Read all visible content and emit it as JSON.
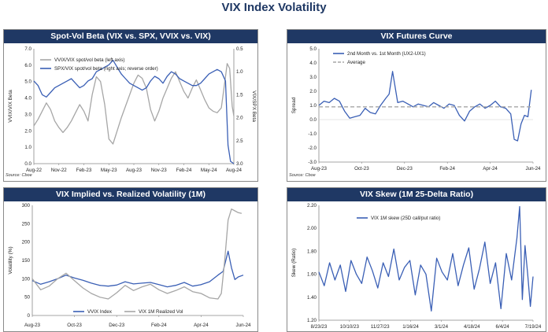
{
  "page_title": "VIX Index Volatility",
  "colors": {
    "header": "#1f3864",
    "blue": "#3a5fb5",
    "gray": "#a6a6a6",
    "avg": "#a6a6a6"
  },
  "chart_data": [
    {
      "type": "line",
      "title": "Spot-Vol Beta (VIX vs. SPX, VVIX vs. VIX)",
      "source": "Source: Cboe",
      "x_tick_labels": [
        "Aug-22",
        "Nov-22",
        "Feb-23",
        "May-23",
        "Aug-23",
        "Nov-23",
        "Feb-24",
        "May-24",
        "Aug-24"
      ],
      "x_range": [
        0,
        24
      ],
      "ylabel_left": "VVIX/VIX Beta",
      "ylabel_right": "VIX/SPX Beta",
      "ylim_left": [
        0.0,
        7.0
      ],
      "ylim_right": [
        3.0,
        0.5
      ],
      "yticks_left": [
        "0.0",
        "1.0",
        "2.0",
        "3.0",
        "4.0",
        "5.0",
        "6.0",
        "7.0"
      ],
      "yticks_right": [
        "0.5",
        "1.0",
        "1.5",
        "2.0",
        "2.5",
        "3.0"
      ],
      "series": [
        {
          "name": "VVIX/VIX spot/vol beta (left axis)",
          "color": "#a6a6a6",
          "axis": "left",
          "x": [
            0,
            0.5,
            1,
            1.5,
            2,
            2.5,
            3,
            3.5,
            4,
            4.5,
            5,
            5.5,
            6,
            6.5,
            7,
            7.5,
            8,
            8.5,
            9,
            9.5,
            10,
            10.5,
            11,
            11.5,
            12,
            12.5,
            13,
            13.5,
            14,
            14.5,
            15,
            15.5,
            16,
            16.5,
            17,
            17.5,
            18,
            18.5,
            19,
            19.5,
            20,
            20.5,
            21,
            21.5,
            22,
            22.5,
            23,
            23.2,
            23.5,
            23.8,
            24
          ],
          "values": [
            2.3,
            2.7,
            3.2,
            3.7,
            3.3,
            2.6,
            2.2,
            1.9,
            2.2,
            2.6,
            3.1,
            3.6,
            3.2,
            2.6,
            4.2,
            5.3,
            5.0,
            3.6,
            1.5,
            1.2,
            2.0,
            2.8,
            3.5,
            4.2,
            4.9,
            5.4,
            5.2,
            4.6,
            3.3,
            2.6,
            3.2,
            4.0,
            4.6,
            5.2,
            5.6,
            5.0,
            4.4,
            4.0,
            4.6,
            5.1,
            4.5,
            3.9,
            3.4,
            3.2,
            3.1,
            3.4,
            5.3,
            6.1,
            5.8,
            3.5,
            2.9
          ]
        },
        {
          "name": "SPX/VIX spot/vol beta (right axis; reverse order)",
          "color": "#3a5fb5",
          "axis": "right",
          "x": [
            0,
            0.5,
            1,
            1.5,
            2,
            2.5,
            3,
            3.5,
            4,
            4.5,
            5,
            5.5,
            6,
            6.5,
            7,
            7.5,
            8,
            8.5,
            9,
            9.5,
            10,
            10.5,
            11,
            11.5,
            12,
            12.5,
            13,
            13.5,
            14,
            14.5,
            15,
            15.5,
            16,
            16.5,
            17,
            17.5,
            18,
            18.5,
            19,
            19.5,
            20,
            20.5,
            21,
            21.5,
            22,
            22.5,
            23,
            23.3,
            23.6,
            24
          ],
          "values": [
            1.2,
            1.3,
            1.5,
            1.55,
            1.45,
            1.35,
            1.3,
            1.25,
            1.2,
            1.15,
            1.25,
            1.35,
            1.3,
            1.2,
            1.15,
            1.0,
            0.95,
            0.9,
            0.85,
            0.75,
            0.9,
            1.05,
            1.15,
            1.25,
            1.3,
            1.35,
            1.4,
            1.35,
            1.2,
            1.1,
            1.15,
            1.25,
            1.1,
            1.0,
            1.05,
            1.15,
            1.2,
            1.25,
            1.3,
            1.3,
            1.25,
            1.15,
            1.05,
            1.0,
            0.95,
            1.0,
            1.2,
            2.6,
            2.95,
            3.0
          ]
        }
      ]
    },
    {
      "type": "line",
      "title": "VIX Futures Curve",
      "source": "Source: Cboe",
      "x_tick_labels": [
        "Aug-23",
        "Oct-23",
        "Dec-23",
        "Feb-24",
        "Apr-24",
        "Jun-24"
      ],
      "x_range": [
        0,
        12.5
      ],
      "ylabel": "Spread",
      "ylim": [
        -3.0,
        5.0
      ],
      "yticks": [
        "-3.0",
        "-2.0",
        "-1.0",
        "0.0",
        "1.0",
        "2.0",
        "3.0",
        "4.0",
        "5.0"
      ],
      "series": [
        {
          "name": "2nd Month vs. 1st Month (UX2-UX1)",
          "color": "#3a5fb5",
          "x": [
            0,
            0.3,
            0.6,
            0.9,
            1.2,
            1.5,
            1.8,
            2.1,
            2.4,
            2.7,
            3.0,
            3.3,
            3.6,
            3.9,
            4.1,
            4.3,
            4.6,
            4.9,
            5.2,
            5.5,
            5.8,
            6.1,
            6.4,
            6.7,
            7.0,
            7.3,
            7.6,
            7.9,
            8.2,
            8.5,
            8.8,
            9.1,
            9.4,
            9.7,
            10.0,
            10.3,
            10.6,
            10.9,
            11.2,
            11.4,
            11.6,
            11.8,
            12.0,
            12.2,
            12.4
          ],
          "values": [
            1.0,
            1.3,
            1.2,
            1.5,
            1.3,
            0.6,
            0.1,
            0.2,
            0.3,
            0.8,
            0.5,
            0.4,
            1.0,
            1.5,
            1.8,
            3.4,
            1.2,
            1.3,
            1.1,
            0.9,
            1.1,
            1.0,
            0.9,
            1.2,
            1.0,
            0.8,
            1.1,
            1.0,
            0.3,
            -0.1,
            0.6,
            0.9,
            1.1,
            0.8,
            1.0,
            1.3,
            0.9,
            0.8,
            0.4,
            -1.4,
            -1.5,
            -0.3,
            0.3,
            0.2,
            2.1
          ]
        },
        {
          "name": "Average",
          "color": "#a6a6a6",
          "dashed": true,
          "x": [
            0,
            12.5
          ],
          "values": [
            0.9,
            0.9
          ]
        }
      ]
    },
    {
      "type": "line",
      "title": "VIX Implied vs. Realized Volatility (1M)",
      "source": "Source: Cboe",
      "x_tick_labels": [
        "Aug-23",
        "Oct-23",
        "Dec-23",
        "Feb-24",
        "Apr-24",
        "Jun-24"
      ],
      "x_range": [
        0,
        12.5
      ],
      "ylabel": "Volatility (%)",
      "ylim": [
        0,
        300
      ],
      "yticks": [
        "0",
        "50",
        "100",
        "150",
        "200",
        "250",
        "300"
      ],
      "series": [
        {
          "name": "VVIX Index",
          "color": "#3a5fb5",
          "x": [
            0,
            0.5,
            1,
            1.5,
            2,
            2.5,
            3,
            3.5,
            4,
            4.5,
            5,
            5.5,
            6,
            6.5,
            7,
            7.5,
            8,
            8.5,
            9,
            9.5,
            10,
            10.5,
            11,
            11.3,
            11.6,
            11.8,
            12.0,
            12.2,
            12.5
          ],
          "values": [
            95,
            85,
            92,
            100,
            110,
            102,
            96,
            88,
            82,
            80,
            83,
            92,
            86,
            88,
            90,
            84,
            78,
            82,
            90,
            80,
            84,
            92,
            110,
            120,
            175,
            130,
            98,
            105,
            110
          ]
        },
        {
          "name": "VIX 1M Realized Vol",
          "color": "#a6a6a6",
          "x": [
            0,
            0.5,
            1,
            1.5,
            2,
            2.5,
            3,
            3.5,
            4,
            4.5,
            5,
            5.5,
            6,
            6.5,
            7,
            7.5,
            8,
            8.5,
            9,
            9.5,
            10,
            10.5,
            11,
            11.2,
            11.4,
            11.6,
            11.8,
            12.0,
            12.2,
            12.4
          ],
          "values": [
            100,
            70,
            80,
            100,
            115,
            95,
            75,
            60,
            50,
            45,
            62,
            82,
            68,
            78,
            85,
            70,
            60,
            68,
            78,
            65,
            60,
            48,
            45,
            60,
            150,
            260,
            290,
            285,
            280,
            278
          ]
        }
      ]
    },
    {
      "type": "line",
      "title": "VIX Skew (1M 25-Delta Ratio)",
      "source": "Source: Cboe",
      "x_tick_labels": [
        "8/23/23",
        "10/10/23",
        "11/27/23",
        "1/16/24",
        "3/1/24",
        "4/18/24",
        "6/4/24",
        "7/19/24"
      ],
      "x_range": [
        0,
        8
      ],
      "ylabel": "Skew (Ratio)",
      "ylim": [
        1.2,
        2.2
      ],
      "yticks": [
        "1.20",
        "1.40",
        "1.60",
        "1.80",
        "2.00",
        "2.20"
      ],
      "series": [
        {
          "name": "VIX 1M skew (25D call/put ratio)",
          "color": "#3a5fb5",
          "x": [
            0,
            0.2,
            0.4,
            0.6,
            0.8,
            1.0,
            1.2,
            1.4,
            1.6,
            1.8,
            2.0,
            2.2,
            2.4,
            2.6,
            2.8,
            3.0,
            3.2,
            3.4,
            3.6,
            3.8,
            4.0,
            4.2,
            4.4,
            4.6,
            4.8,
            5.0,
            5.2,
            5.4,
            5.6,
            5.8,
            6.0,
            6.2,
            6.4,
            6.6,
            6.8,
            7.0,
            7.2,
            7.4,
            7.5,
            7.6,
            7.7,
            7.8,
            7.9,
            8.0
          ],
          "values": [
            1.62,
            1.5,
            1.7,
            1.55,
            1.68,
            1.45,
            1.72,
            1.6,
            1.52,
            1.75,
            1.63,
            1.48,
            1.7,
            1.58,
            1.82,
            1.55,
            1.66,
            1.72,
            1.42,
            1.68,
            1.6,
            1.28,
            1.74,
            1.62,
            1.55,
            1.78,
            1.5,
            1.68,
            1.83,
            1.47,
            1.65,
            1.88,
            1.52,
            1.7,
            1.3,
            1.78,
            1.55,
            1.92,
            2.19,
            1.38,
            1.85,
            1.6,
            1.32,
            1.58
          ]
        }
      ]
    }
  ]
}
